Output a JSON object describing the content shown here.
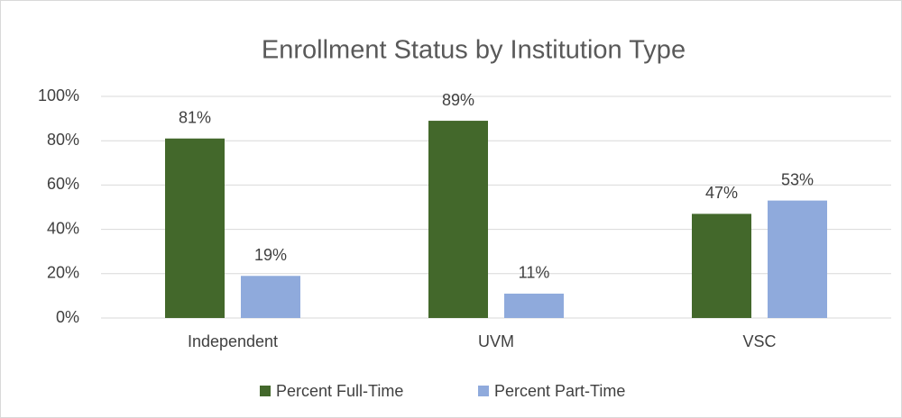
{
  "chart_data": {
    "type": "bar",
    "title": "Enrollment Status by Institution Type",
    "categories": [
      "Independent",
      "UVM",
      "VSC"
    ],
    "series": [
      {
        "name": "Percent Full-Time",
        "color": "#43682b",
        "values": [
          81,
          89,
          47
        ],
        "value_labels": [
          "81%",
          "89%",
          "47%"
        ]
      },
      {
        "name": "Percent Part-Time",
        "color": "#8faadc",
        "values": [
          19,
          11,
          53
        ],
        "value_labels": [
          "19%",
          "11%",
          "53%"
        ]
      }
    ],
    "ylim": [
      0,
      100
    ],
    "yticks": [
      {
        "value": 0,
        "label": "0%"
      },
      {
        "value": 20,
        "label": "20%"
      },
      {
        "value": 40,
        "label": "40%"
      },
      {
        "value": 60,
        "label": "60%"
      },
      {
        "value": 80,
        "label": "80%"
      },
      {
        "value": 100,
        "label": "100%"
      }
    ],
    "grid": true,
    "legend": "bottom"
  }
}
